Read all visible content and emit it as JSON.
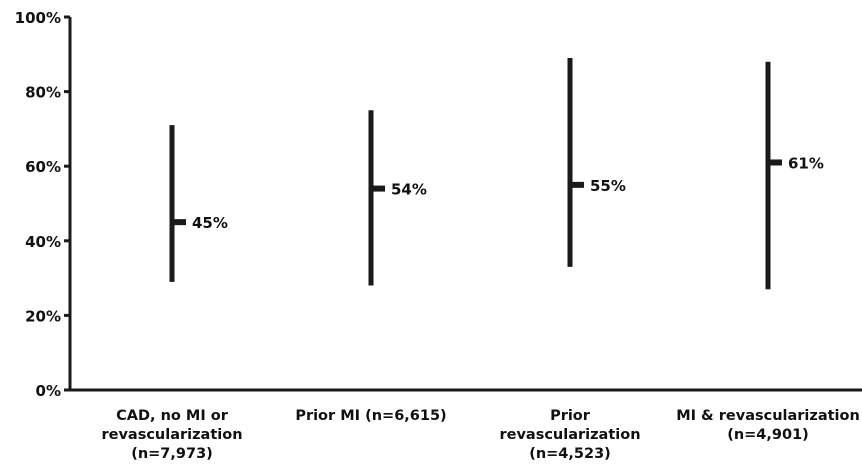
{
  "chart_data": {
    "type": "range",
    "title": "",
    "xlabel": "",
    "ylabel": "",
    "ylim": [
      0,
      100
    ],
    "yticks": [
      0,
      20,
      40,
      60,
      80,
      100
    ],
    "ytick_labels": [
      "0%",
      "20%",
      "40%",
      "60%",
      "80%",
      "100%"
    ],
    "grid": false,
    "legend": "none",
    "bar_color": "#1a1a1a",
    "categories": [
      {
        "label_lines": [
          "CAD, no MI or",
          "revascularization",
          "(n=7,973)"
        ],
        "low": 29,
        "high": 71,
        "median": 45,
        "value_label": "45%"
      },
      {
        "label_lines": [
          "Prior MI (n=6,615)"
        ],
        "low": 28,
        "high": 75,
        "median": 54,
        "value_label": "54%"
      },
      {
        "label_lines": [
          "Prior",
          "revascularization",
          "(n=4,523)"
        ],
        "low": 33,
        "high": 89,
        "median": 55,
        "value_label": "55%"
      },
      {
        "label_lines": [
          "MI & revascularization",
          "(n=4,901)"
        ],
        "low": 27,
        "high": 88,
        "median": 61,
        "value_label": "61%"
      }
    ]
  }
}
